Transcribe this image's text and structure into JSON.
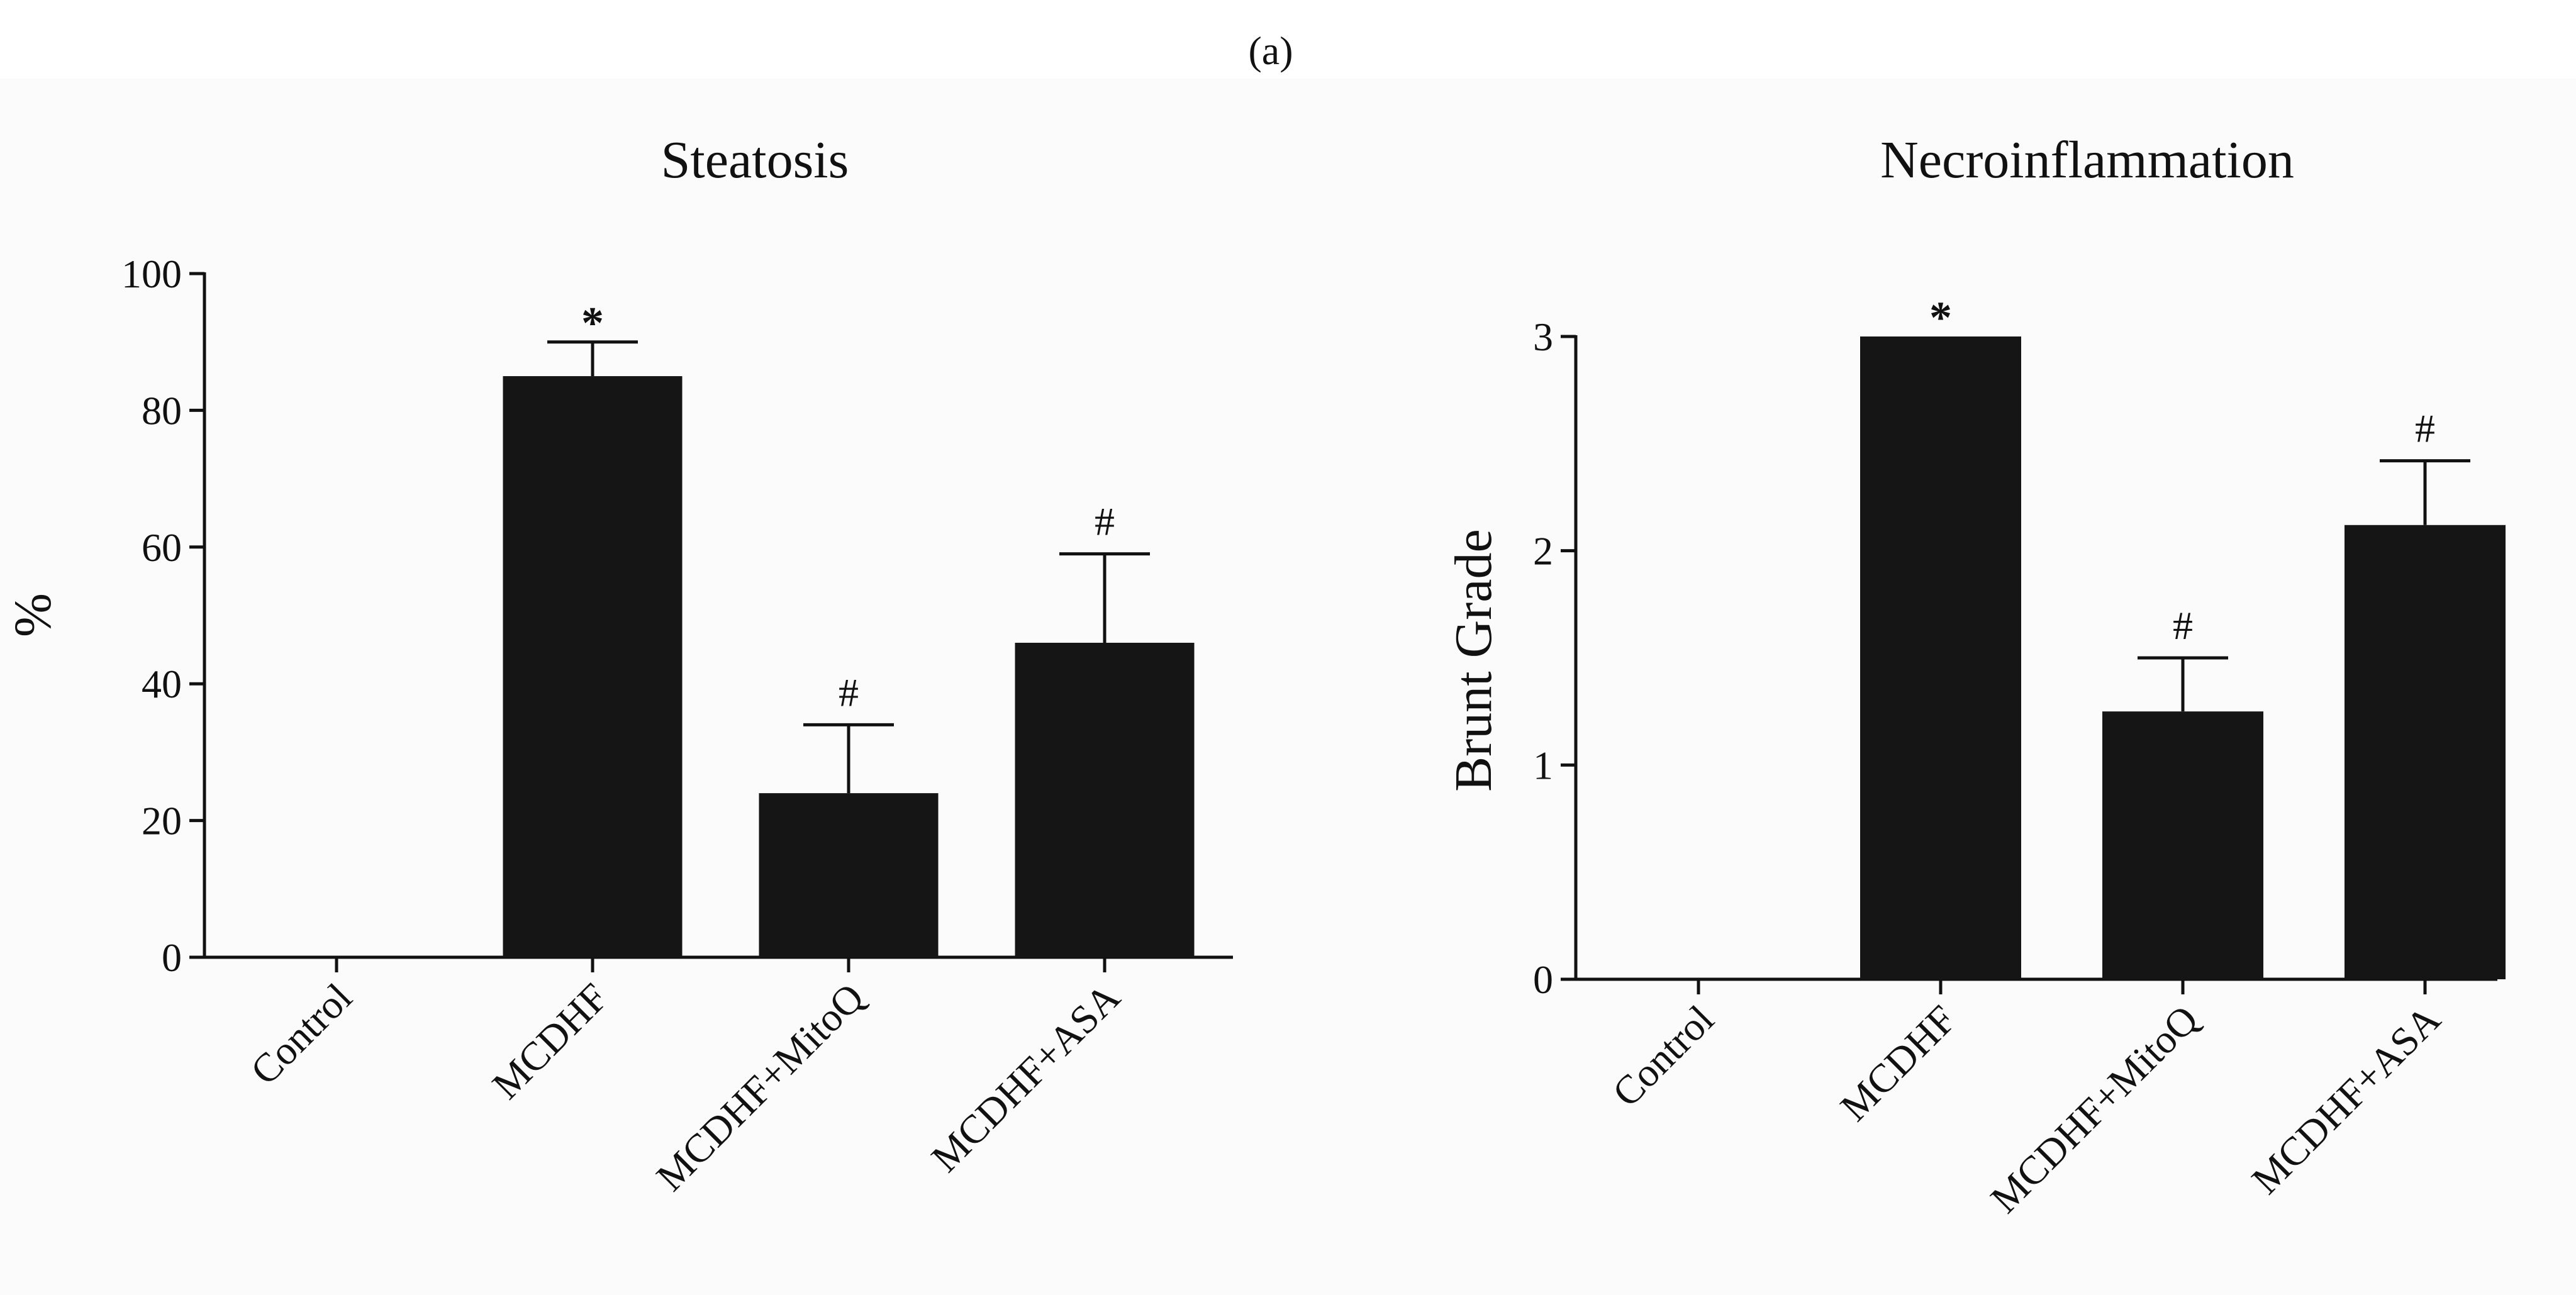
{
  "figure_label": "(a)",
  "chart_data": [
    {
      "type": "bar",
      "title": "Steatosis",
      "xlabel": "",
      "ylabel": "%",
      "ylim": [
        0,
        100
      ],
      "yticks": [
        0,
        20,
        40,
        60,
        80,
        100
      ],
      "categories": [
        "Control",
        "MCDHF",
        "MCDHF+MitoQ",
        "MCDHF+ASA"
      ],
      "values": [
        0,
        85,
        24,
        46
      ],
      "errors": [
        0,
        5,
        10,
        13
      ],
      "annotations": [
        "",
        "*",
        "#",
        "#"
      ],
      "bar_color": "#151515"
    },
    {
      "type": "bar",
      "title": "Necroinflammation",
      "xlabel": "",
      "ylabel": "Brunt Grade",
      "ylim": [
        0,
        3
      ],
      "yticks": [
        0,
        1,
        2,
        3
      ],
      "categories": [
        "Control",
        "MCDHF",
        "MCDHF+MitoQ",
        "MCDHF+ASA"
      ],
      "values": [
        0,
        3.0,
        1.25,
        2.12
      ],
      "errors": [
        0,
        0,
        0.25,
        0.3
      ],
      "annotations": [
        "",
        "*",
        "#",
        "#"
      ],
      "bar_color": "#151515"
    }
  ]
}
